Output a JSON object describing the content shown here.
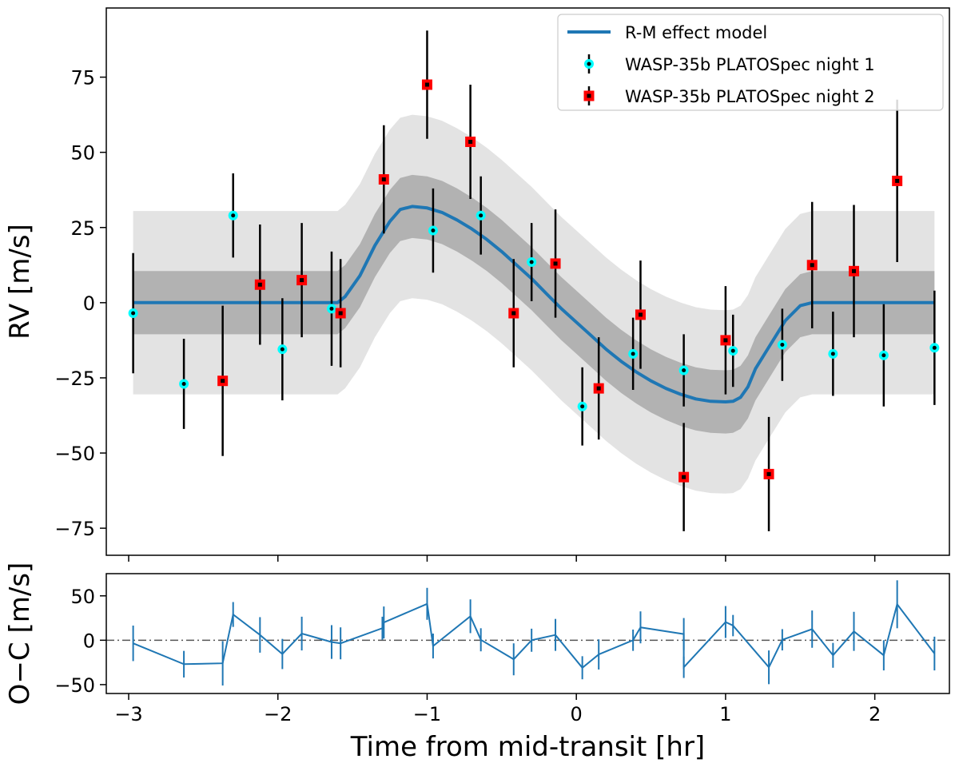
{
  "chart_data": [
    {
      "type": "scatter",
      "panel": "main",
      "xlabel": "",
      "ylabel": "RV [m/s]",
      "xlim": [
        -3.15,
        2.5
      ],
      "ylim": [
        -84,
        98
      ],
      "yticks": [
        -75,
        -50,
        -25,
        0,
        25,
        50,
        75
      ],
      "xticks": [
        -3,
        -2,
        -1,
        0,
        1,
        2
      ],
      "grid": false,
      "legend_position": "top-right",
      "legend": [
        {
          "label": "R-M effect model",
          "kind": "line",
          "color": "#1f77b4"
        },
        {
          "label": "WASP-35b PLATOSpec night 1",
          "kind": "circle",
          "face": "#00ffff",
          "edge": "#00ffff"
        },
        {
          "label": "WASP-35b PLATOSpec night 2",
          "kind": "square",
          "face": "#ff0000",
          "edge": "#ff0000"
        }
      ],
      "model": {
        "x": [
          -2.97,
          -1.6,
          -1.55,
          -1.45,
          -1.35,
          -1.25,
          -1.18,
          -1.1,
          -1.0,
          -0.9,
          -0.8,
          -0.7,
          -0.6,
          -0.5,
          -0.4,
          -0.3,
          -0.2,
          -0.1,
          0.0,
          0.1,
          0.2,
          0.3,
          0.4,
          0.5,
          0.6,
          0.7,
          0.8,
          0.9,
          1.0,
          1.05,
          1.1,
          1.15,
          1.2,
          1.3,
          1.4,
          1.5,
          1.58,
          2.4
        ],
        "y": [
          0,
          0,
          2,
          9,
          19,
          27,
          31,
          32,
          31.5,
          30,
          27.5,
          24.5,
          21,
          17,
          12.5,
          8,
          3,
          -2,
          -6.5,
          -11,
          -15.5,
          -19.5,
          -23,
          -26,
          -28.5,
          -30.5,
          -32,
          -32.8,
          -33,
          -32.8,
          -31.5,
          -28,
          -22,
          -14,
          -6,
          -1,
          0,
          0
        ],
        "inner_band": 10.5,
        "outer_band": 30.5,
        "color": "#1f77b4"
      },
      "series": [
        {
          "name": "WASP-35b PLATOSpec night 1",
          "marker": "circle",
          "x": [
            -2.97,
            -2.63,
            -2.3,
            -1.97,
            -1.64,
            -0.96,
            -0.64,
            -0.3,
            0.04,
            0.38,
            0.72,
            1.05,
            1.38,
            1.72,
            2.06,
            2.4
          ],
          "y": [
            -3.5,
            -27,
            29,
            -15.5,
            -2,
            24,
            29,
            13.5,
            -34.5,
            -17,
            -22.5,
            -16,
            -14,
            -17,
            -17.5,
            -15
          ],
          "err": [
            20,
            15,
            14,
            17,
            19,
            14,
            13,
            13,
            13,
            12,
            12,
            12,
            12,
            14,
            17,
            19
          ]
        },
        {
          "name": "WASP-35b PLATOSpec night 2",
          "marker": "square",
          "x": [
            -2.37,
            -2.12,
            -1.84,
            -1.58,
            -1.29,
            -1.0,
            -0.71,
            -0.42,
            -0.14,
            0.15,
            0.43,
            0.72,
            1.0,
            1.29,
            1.58,
            1.86,
            2.15
          ],
          "y": [
            -26,
            6,
            7.5,
            -3.5,
            41,
            72.5,
            53.5,
            -3.5,
            13,
            -28.5,
            -4,
            -58,
            -12.5,
            -57,
            12.5,
            10.5,
            40.5
          ],
          "err": [
            25,
            20,
            19,
            18,
            18,
            18,
            19,
            18,
            18,
            17,
            18,
            18,
            18,
            19,
            21,
            22,
            27
          ]
        }
      ]
    },
    {
      "type": "line",
      "panel": "residuals",
      "xlabel": "Time from mid-transit [hr]",
      "ylabel": "O−C [m/s]",
      "xlim": [
        -3.15,
        2.5
      ],
      "ylim": [
        -60,
        75
      ],
      "yticks": [
        -50,
        0,
        50
      ],
      "xticks": [
        -3,
        -2,
        -1,
        0,
        1,
        2
      ],
      "reference_line": 0,
      "color": "#1f77b4",
      "x": [
        -2.97,
        -2.63,
        -2.37,
        -2.3,
        -2.12,
        -1.97,
        -1.84,
        -1.64,
        -1.58,
        -1.3,
        -1.29,
        -1.0,
        -0.96,
        -0.71,
        -0.64,
        -0.42,
        -0.3,
        -0.14,
        0.04,
        0.15,
        0.38,
        0.43,
        0.72,
        0.72,
        1.0,
        1.05,
        1.29,
        1.38,
        1.58,
        1.72,
        1.86,
        2.06,
        2.15,
        2.4
      ],
      "y": [
        -3.5,
        -27,
        -26,
        29,
        6,
        -15.5,
        7.5,
        -2,
        -3.5,
        13.5,
        20,
        41,
        -6.5,
        27,
        0.5,
        -21.5,
        0,
        6,
        -31,
        -16,
        0,
        14.5,
        7,
        -30.5,
        20.5,
        16.5,
        -30.5,
        0.5,
        12.5,
        -17,
        10,
        -17,
        40.5,
        -15
      ],
      "err": [
        20,
        15,
        25,
        14,
        20,
        17,
        19,
        19,
        18,
        13,
        18,
        18,
        14,
        19,
        13,
        18,
        13,
        18,
        13,
        17,
        12,
        18,
        18,
        12,
        18,
        12,
        19,
        12,
        21,
        14,
        22,
        17,
        27,
        19
      ]
    }
  ]
}
